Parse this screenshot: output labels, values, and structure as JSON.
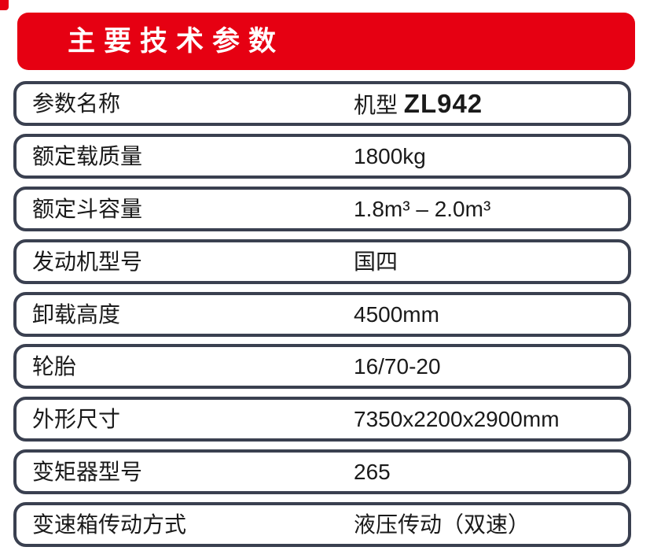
{
  "colors": {
    "accent_red": "#e60012",
    "row_border": "#3a4050",
    "text": "#1a1a1a",
    "banner_text": "#ffffff"
  },
  "header": {
    "title": "主要技术参数"
  },
  "table": {
    "rows": [
      {
        "label": "参数名称",
        "value_prefix": "机型 ",
        "value_model": "ZL942"
      },
      {
        "label": "额定载质量",
        "value": "1800kg"
      },
      {
        "label": "额定斗容量",
        "value": "1.8m³ – 2.0m³"
      },
      {
        "label": "发动机型号",
        "value": "国四"
      },
      {
        "label": "卸载高度",
        "value": "4500mm"
      },
      {
        "label": "轮胎",
        "value": "16/70-20"
      },
      {
        "label": "外形尺寸",
        "value": "7350x2200x2900mm"
      },
      {
        "label": "变矩器型号",
        "value": "265"
      },
      {
        "label": "变速箱传动方式",
        "value": "液压传动（双速）"
      }
    ]
  }
}
